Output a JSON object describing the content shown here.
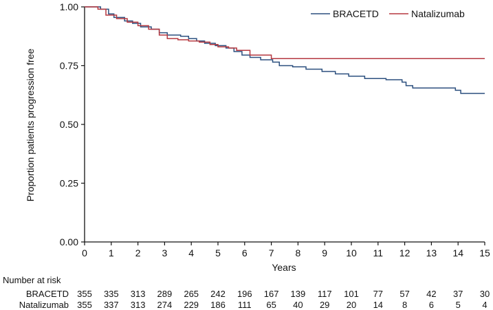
{
  "chart_data": {
    "type": "line",
    "step": true,
    "title": "",
    "xlabel": "Years",
    "ylabel": "Proportion patients progression free",
    "xlim": [
      0,
      15
    ],
    "ylim": [
      0,
      1
    ],
    "x_ticks": [
      0,
      1,
      2,
      3,
      4,
      5,
      6,
      7,
      8,
      9,
      10,
      11,
      12,
      13,
      14,
      15
    ],
    "y_ticks": [
      0,
      0.25,
      0.5,
      0.75,
      1.0
    ],
    "y_tick_labels": [
      "0.00",
      "0.25",
      "0.50",
      "0.75",
      "1.00"
    ],
    "grid": false,
    "legend_position": "top-right",
    "series": [
      {
        "name": "BRACETD",
        "color": "#2b4f7e",
        "points": [
          [
            0,
            1.0
          ],
          [
            0.6,
            0.99
          ],
          [
            0.9,
            0.97
          ],
          [
            1.1,
            0.955
          ],
          [
            1.5,
            0.94
          ],
          [
            1.8,
            0.93
          ],
          [
            2.1,
            0.915
          ],
          [
            2.5,
            0.905
          ],
          [
            2.8,
            0.89
          ],
          [
            3.1,
            0.88
          ],
          [
            3.6,
            0.875
          ],
          [
            3.9,
            0.865
          ],
          [
            4.2,
            0.855
          ],
          [
            4.5,
            0.845
          ],
          [
            4.9,
            0.835
          ],
          [
            5.3,
            0.825
          ],
          [
            5.6,
            0.81
          ],
          [
            5.9,
            0.795
          ],
          [
            6.2,
            0.785
          ],
          [
            6.6,
            0.775
          ],
          [
            7.05,
            0.765
          ],
          [
            7.3,
            0.75
          ],
          [
            7.8,
            0.745
          ],
          [
            8.3,
            0.735
          ],
          [
            8.9,
            0.725
          ],
          [
            9.4,
            0.715
          ],
          [
            9.9,
            0.705
          ],
          [
            10.5,
            0.695
          ],
          [
            11.3,
            0.69
          ],
          [
            11.9,
            0.68
          ],
          [
            12.05,
            0.665
          ],
          [
            12.3,
            0.655
          ],
          [
            13.0,
            0.655
          ],
          [
            13.9,
            0.645
          ],
          [
            14.1,
            0.632
          ],
          [
            15,
            0.632
          ]
        ]
      },
      {
        "name": "Natalizumab",
        "color": "#b5373f",
        "points": [
          [
            0,
            1.0
          ],
          [
            0.5,
            0.99
          ],
          [
            0.8,
            0.965
          ],
          [
            1.2,
            0.95
          ],
          [
            1.6,
            0.935
          ],
          [
            2.0,
            0.92
          ],
          [
            2.4,
            0.905
          ],
          [
            2.8,
            0.88
          ],
          [
            3.1,
            0.865
          ],
          [
            3.5,
            0.86
          ],
          [
            3.9,
            0.855
          ],
          [
            4.3,
            0.85
          ],
          [
            4.7,
            0.84
          ],
          [
            5.0,
            0.83
          ],
          [
            5.4,
            0.825
          ],
          [
            5.7,
            0.815
          ],
          [
            6.2,
            0.795
          ],
          [
            7.0,
            0.78
          ],
          [
            15,
            0.78
          ]
        ]
      }
    ],
    "risk_table": {
      "title": "Number at risk",
      "rows": [
        {
          "label": "BRACETD",
          "counts": [
            355,
            335,
            313,
            289,
            265,
            242,
            196,
            167,
            139,
            117,
            101,
            77,
            57,
            42,
            37,
            30
          ]
        },
        {
          "label": "Natalizumab",
          "counts": [
            355,
            337,
            313,
            274,
            229,
            186,
            111,
            65,
            40,
            29,
            20,
            14,
            8,
            6,
            5,
            4
          ]
        }
      ]
    }
  }
}
